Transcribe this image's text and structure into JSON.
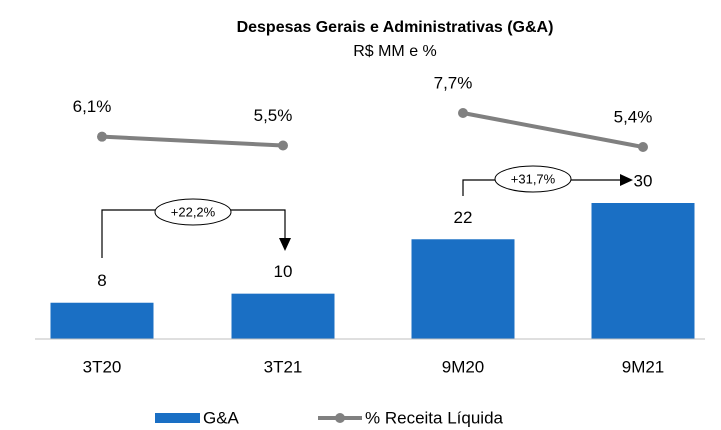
{
  "chart_data": {
    "type": "bar",
    "title": "Despesas Gerais e Administrativas (G&A)",
    "subtitle": "R$ MM e %",
    "categories": [
      "3T20",
      "3T21",
      "9M20",
      "9M21"
    ],
    "series": [
      {
        "name": "G&A",
        "type": "bar",
        "color": "#1a6fc4",
        "values": [
          8,
          10,
          22,
          30
        ]
      },
      {
        "name": "% Receita Líquida",
        "type": "line",
        "color": "#808080",
        "values": [
          6.1,
          5.5,
          7.7,
          5.4
        ],
        "value_labels": [
          "6,1%",
          "5,5%",
          "7,7%",
          "5,4%"
        ]
      }
    ],
    "annotations": [
      "+22,2%",
      "+31,7%"
    ],
    "legend": "bottom"
  }
}
